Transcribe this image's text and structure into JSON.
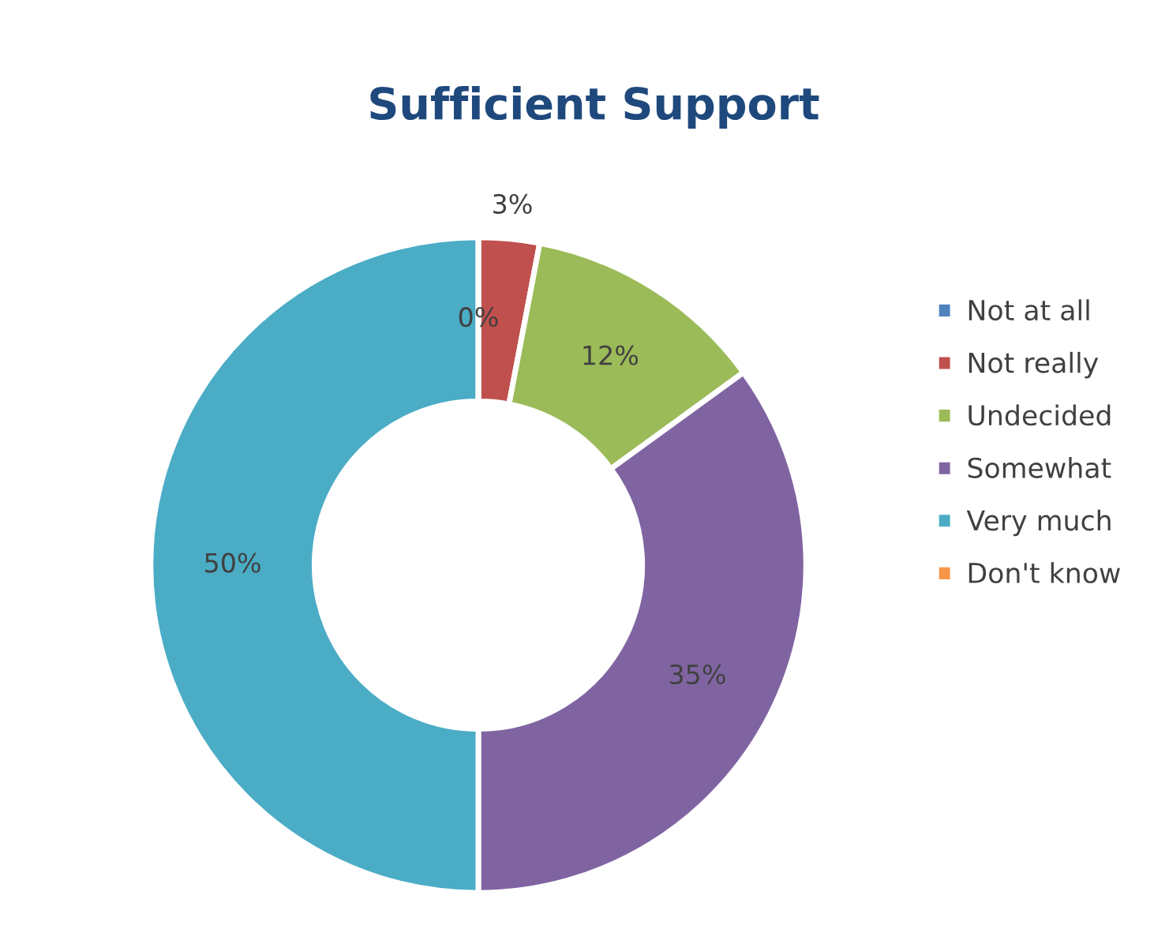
{
  "chart_data": {
    "type": "donut",
    "title": "Sufficient Support",
    "categories": [
      "Not at all",
      "Not really",
      "Undecided",
      "Somewhat",
      "Very much",
      "Don't know"
    ],
    "values": [
      0,
      3,
      12,
      35,
      50,
      0
    ],
    "value_labels": [
      "0%",
      "3%",
      "12%",
      "35%",
      "50%",
      null
    ],
    "colors": [
      "#4f81bd",
      "#c0504d",
      "#9bbb59",
      "#8064a2",
      "#4bacc6",
      "#f79646"
    ],
    "legend": "right"
  }
}
